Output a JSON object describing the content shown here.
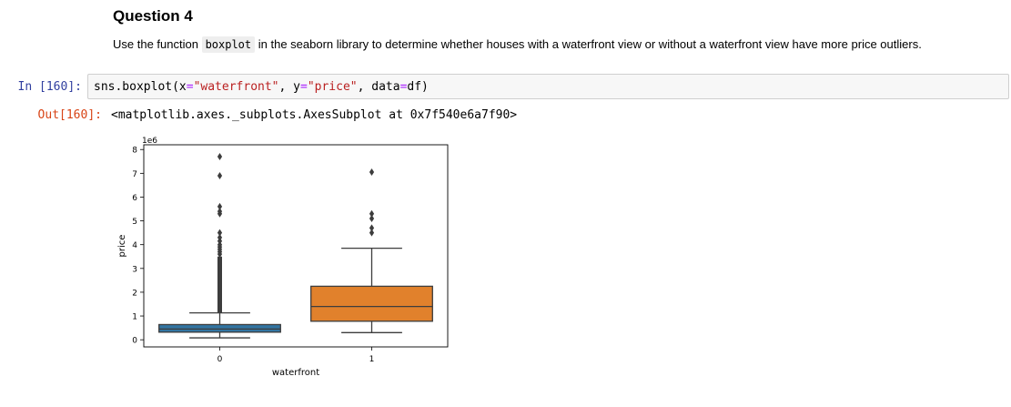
{
  "markdown": {
    "title": "Question 4",
    "text_before": "Use the function ",
    "code": "boxplot",
    "text_after": " in the seaborn library to determine whether houses with a waterfront view or without a waterfront view have more price outliers."
  },
  "input_cell": {
    "prompt": "In [160]:",
    "code": {
      "p1": "sns.boxplot(x",
      "eq1": "=",
      "s1": "\"waterfront\"",
      "p2": ", y",
      "eq2": "=",
      "s2": "\"price\"",
      "p3": ", data",
      "eq3": "=",
      "p4": "df)"
    }
  },
  "output_cell": {
    "prompt": "Out[160]:",
    "text": "<matplotlib.axes._subplots.AxesSubplot at 0x7f540e6a7f90>"
  },
  "chart_data": {
    "type": "box",
    "xlabel": "waterfront",
    "ylabel": "price",
    "y_multiplier": "1e6",
    "ylim": [
      -0.3,
      8.2
    ],
    "yticks": [
      0,
      1,
      2,
      3,
      4,
      5,
      6,
      7,
      8
    ],
    "categories": [
      "0",
      "1"
    ],
    "colors": [
      "#3274a1",
      "#e1812c"
    ],
    "boxes": [
      {
        "category": "0",
        "whisker_low": 0.08,
        "q1": 0.32,
        "median": 0.45,
        "q3": 0.64,
        "whisker_high": 1.13,
        "outlier_band": [
          1.13,
          3.5
        ],
        "outliers": [
          3.6,
          3.7,
          3.8,
          3.9,
          4.0,
          4.15,
          4.3,
          4.5,
          5.3,
          5.4,
          5.6,
          6.9,
          7.7
        ]
      },
      {
        "category": "1",
        "whisker_low": 0.3,
        "q1": 0.78,
        "median": 1.4,
        "q3": 2.25,
        "whisker_high": 3.85,
        "outliers": [
          4.5,
          4.7,
          5.1,
          5.3,
          7.05
        ]
      }
    ]
  }
}
